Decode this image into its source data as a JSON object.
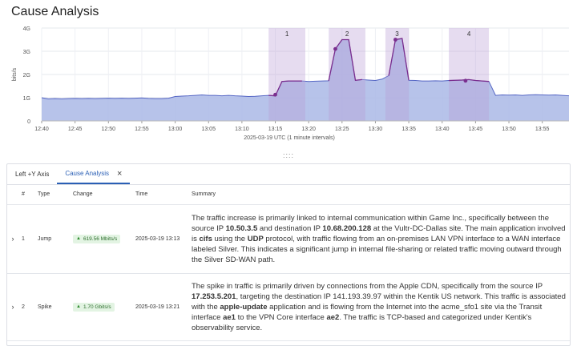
{
  "page": {
    "title": "Cause Analysis"
  },
  "chart_data": {
    "type": "area",
    "ylabel": "bits/s",
    "xlabel": "2025-03-19 UTC (1 minute intervals)",
    "yticks": [
      "0",
      "1G",
      "2G",
      "3G",
      "4G"
    ],
    "ylim": [
      0,
      4
    ],
    "xticks": [
      "12:40",
      "12:45",
      "12:50",
      "12:55",
      "13:00",
      "13:05",
      "13:10",
      "13:15",
      "13:20",
      "13:25",
      "13:30",
      "13:35",
      "13:40",
      "13:45",
      "13:50",
      "13:55"
    ],
    "xlim": [
      0,
      79
    ],
    "x_minute_offsets_note": "x values are minutes after 12:40",
    "series": [
      {
        "values": [
          [
            0,
            1.0
          ],
          [
            1,
            0.95
          ],
          [
            2,
            0.96
          ],
          [
            3,
            0.95
          ],
          [
            4,
            0.96
          ],
          [
            5,
            0.97
          ],
          [
            6,
            0.96
          ],
          [
            7,
            0.97
          ],
          [
            8,
            0.96
          ],
          [
            9,
            0.97
          ],
          [
            10,
            0.98
          ],
          [
            11,
            0.97
          ],
          [
            12,
            0.98
          ],
          [
            13,
            0.97
          ],
          [
            14,
            0.98
          ],
          [
            15,
            0.99
          ],
          [
            16,
            0.97
          ],
          [
            17,
            0.96
          ],
          [
            18,
            0.96
          ],
          [
            19,
            0.98
          ],
          [
            20,
            1.05
          ],
          [
            21,
            1.07
          ],
          [
            22,
            1.08
          ],
          [
            23,
            1.1
          ],
          [
            24,
            1.12
          ],
          [
            25,
            1.1
          ],
          [
            26,
            1.1
          ],
          [
            27,
            1.08
          ],
          [
            28,
            1.1
          ],
          [
            29,
            1.08
          ],
          [
            30,
            1.07
          ],
          [
            31,
            1.05
          ],
          [
            32,
            1.06
          ],
          [
            33,
            1.08
          ],
          [
            34,
            1.1
          ],
          [
            35,
            1.08
          ],
          [
            36,
            1.7
          ],
          [
            37,
            1.72
          ],
          [
            38,
            1.72
          ],
          [
            39,
            1.72
          ],
          [
            40,
            1.7
          ],
          [
            41,
            1.71
          ],
          [
            42,
            1.72
          ],
          [
            43,
            1.73
          ],
          [
            44,
            3.1
          ],
          [
            45,
            3.5
          ],
          [
            46,
            3.5
          ],
          [
            47,
            1.75
          ],
          [
            48,
            1.78
          ],
          [
            49,
            1.76
          ],
          [
            50,
            1.74
          ],
          [
            51,
            1.8
          ],
          [
            52,
            1.95
          ],
          [
            53,
            3.5
          ],
          [
            54,
            3.55
          ],
          [
            55,
            1.75
          ],
          [
            56,
            1.74
          ],
          [
            57,
            1.72
          ],
          [
            58,
            1.72
          ],
          [
            59,
            1.73
          ],
          [
            60,
            1.72
          ],
          [
            61,
            1.74
          ],
          [
            62,
            1.75
          ],
          [
            63,
            1.76
          ],
          [
            64,
            1.78
          ],
          [
            65,
            1.74
          ],
          [
            66,
            1.72
          ],
          [
            67,
            1.7
          ],
          [
            68,
            1.1
          ],
          [
            69,
            1.12
          ],
          [
            70,
            1.11
          ],
          [
            71,
            1.12
          ],
          [
            72,
            1.1
          ],
          [
            73,
            1.12
          ],
          [
            74,
            1.13
          ],
          [
            75,
            1.12
          ],
          [
            76,
            1.11
          ],
          [
            77,
            1.12
          ],
          [
            78,
            1.1
          ],
          [
            79,
            1.08
          ]
        ],
        "color": "#aab8e6",
        "line_color": "#5566c4"
      }
    ],
    "highlight_color": "#7a2e8e",
    "regions": [
      {
        "label": "1",
        "x_start": 34,
        "x_end": 39.5,
        "points": [
          [
            35,
            1.13
          ]
        ]
      },
      {
        "label": "2",
        "x_start": 43,
        "x_end": 48.5,
        "points": [
          [
            44,
            3.1
          ]
        ]
      },
      {
        "label": "3",
        "x_start": 51.5,
        "x_end": 55,
        "points": [
          [
            53,
            3.5
          ]
        ]
      },
      {
        "label": "4",
        "x_start": 61,
        "x_end": 67,
        "points": [
          [
            63.5,
            1.73
          ]
        ]
      }
    ]
  },
  "splitter": {
    "glyph": "::::"
  },
  "tabs": [
    {
      "label": "Left +Y Axis"
    },
    {
      "label": "Cause Analysis",
      "close": "×"
    }
  ],
  "table": {
    "headers": [
      "#",
      "Type",
      "Change",
      "Time",
      "Summary"
    ],
    "rows": [
      {
        "expand": "›",
        "num": "1",
        "type": "Jump",
        "change": "619.56 Mbits/s",
        "time": "2025-03-19 13:13",
        "summary_parts": [
          {
            "text": "The traffic increase is primarily linked to internal communication within Game Inc., specifically between the source IP ",
            "bold": false
          },
          {
            "text": "10.50.3.5",
            "bold": true
          },
          {
            "text": " and destination IP ",
            "bold": false
          },
          {
            "text": "10.68.200.128",
            "bold": true
          },
          {
            "text": " at the Vultr-DC-Dallas site. The main application involved is ",
            "bold": false
          },
          {
            "text": "cifs",
            "bold": true
          },
          {
            "text": " using the ",
            "bold": false
          },
          {
            "text": "UDP",
            "bold": true
          },
          {
            "text": " protocol, with traffic flowing from an on-premises LAN VPN interface to a WAN interface labeled Silver. This indicates a significant jump in internal file-sharing or related traffic moving outward through the Silver SD-WAN path.",
            "bold": false
          }
        ]
      },
      {
        "expand": "›",
        "num": "2",
        "type": "Spike",
        "change": "1.70 Gbits/s",
        "time": "2025-03-19 13:21",
        "summary_parts": [
          {
            "text": "The spike in traffic is primarily driven by connections from the Apple CDN, specifically from the source IP ",
            "bold": false
          },
          {
            "text": "17.253.5.201",
            "bold": true
          },
          {
            "text": ", targeting the destination IP 141.193.39.97 within the Kentik US network. This traffic is associated with the ",
            "bold": false
          },
          {
            "text": "apple-update",
            "bold": true
          },
          {
            "text": " application and is flowing from the Internet into the acme_sfo1 site via the Transit interface ",
            "bold": false
          },
          {
            "text": "ae1",
            "bold": true
          },
          {
            "text": " to the VPN Core interface ",
            "bold": false
          },
          {
            "text": "ae2",
            "bold": true
          },
          {
            "text": ". The traffic is TCP-based and categorized under Kentik's observability service.",
            "bold": false
          }
        ]
      }
    ]
  },
  "change_indicator": "▲"
}
